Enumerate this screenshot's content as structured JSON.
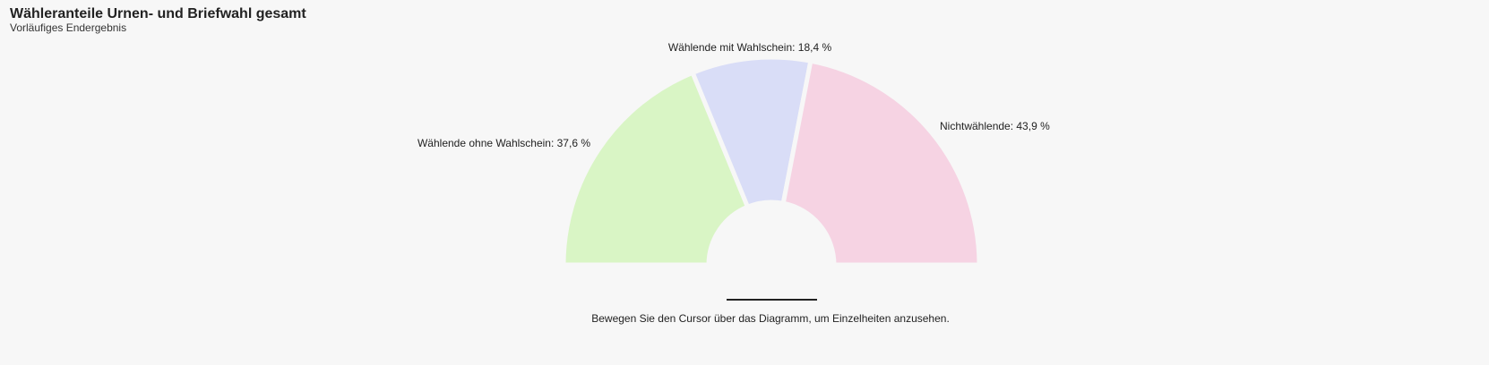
{
  "header": {
    "title": "Wähleranteile Urnen- und Briefwahl gesamt",
    "subtitle": "Vorläufiges Endergebnis"
  },
  "chart_data": {
    "type": "pie",
    "variant": "semi-donut",
    "slices": [
      {
        "label": "Wählende ohne Wahlschein: 37,6 %",
        "value": 37.6,
        "color": "#d9f5c5"
      },
      {
        "label": "Wählende mit Wahlschein: 18,4 %",
        "value": 18.4,
        "color": "#d9ddf7"
      },
      {
        "label": "Nichtwählende: 43,9 %",
        "value": 43.9,
        "color": "#f6d3e3"
      }
    ]
  },
  "footer": {
    "hint": "Bewegen Sie den Cursor über das Diagramm, um Einzelheiten anzusehen."
  }
}
